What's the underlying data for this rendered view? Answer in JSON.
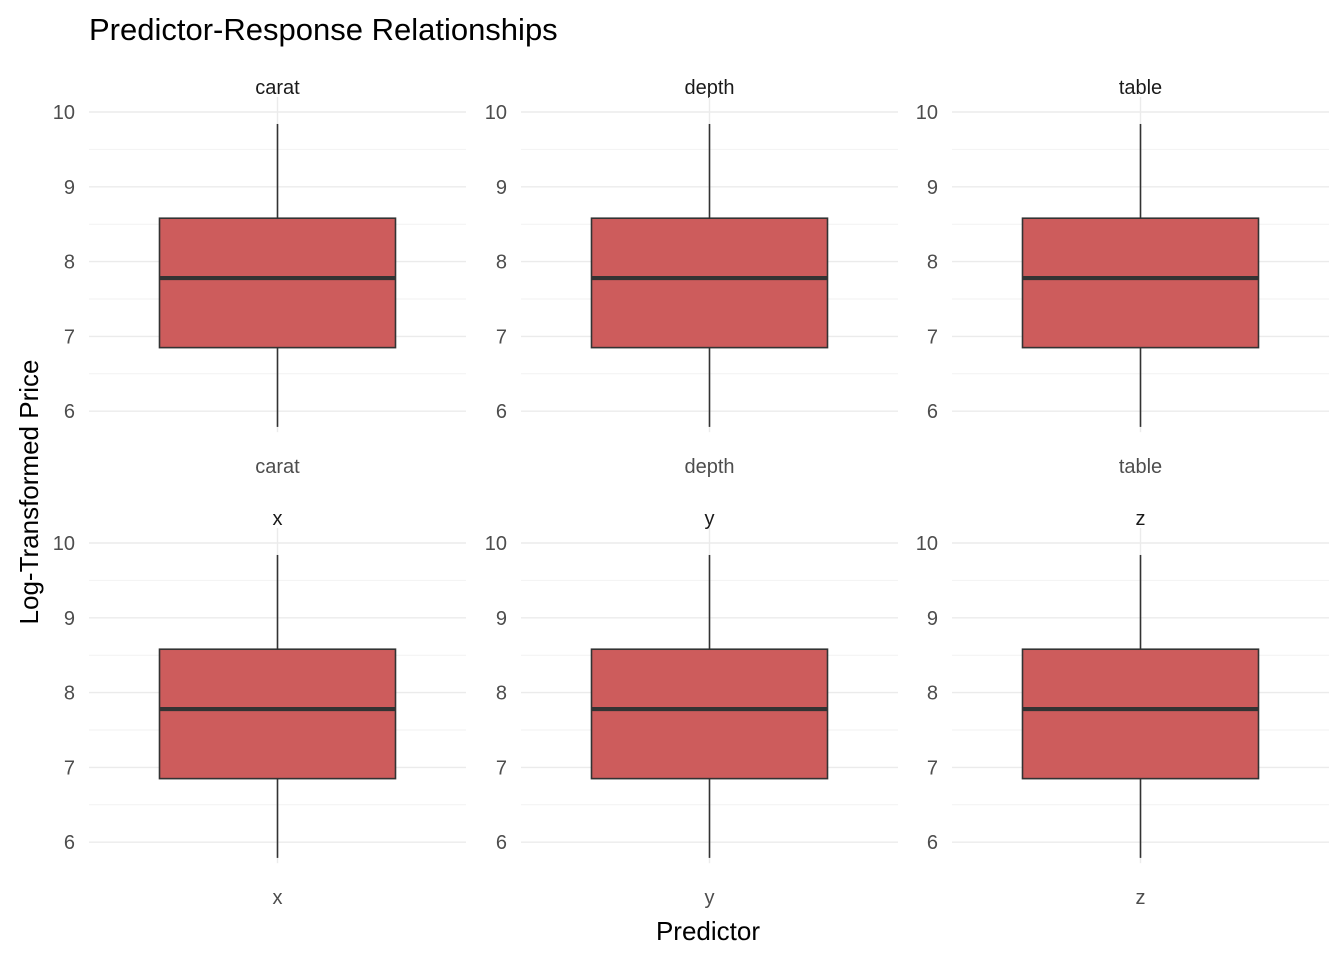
{
  "chart_data": {
    "type": "box",
    "title": "Predictor-Response Relationships",
    "xlabel": "Predictor",
    "ylabel": "Log-Transformed Price",
    "ylim": [
      5.8,
      10.2
    ],
    "yticks": [
      6,
      7,
      8,
      9,
      10
    ],
    "fill_color": "#CD5C5C",
    "outline_color": "#333333",
    "panels": [
      {
        "strip": "carat",
        "category": "carat",
        "min": 5.79,
        "q1": 6.85,
        "median": 7.78,
        "q3": 8.58,
        "max": 9.84
      },
      {
        "strip": "depth",
        "category": "depth",
        "min": 5.79,
        "q1": 6.85,
        "median": 7.78,
        "q3": 8.58,
        "max": 9.84
      },
      {
        "strip": "table",
        "category": "table",
        "min": 5.79,
        "q1": 6.85,
        "median": 7.78,
        "q3": 8.58,
        "max": 9.84
      },
      {
        "strip": "x",
        "category": "x",
        "min": 5.79,
        "q1": 6.85,
        "median": 7.78,
        "q3": 8.58,
        "max": 9.84
      },
      {
        "strip": "y",
        "category": "y",
        "min": 5.79,
        "q1": 6.85,
        "median": 7.78,
        "q3": 8.58,
        "max": 9.84
      },
      {
        "strip": "z",
        "category": "z",
        "min": 5.79,
        "q1": 6.85,
        "median": 7.78,
        "q3": 8.58,
        "max": 9.84
      }
    ]
  }
}
